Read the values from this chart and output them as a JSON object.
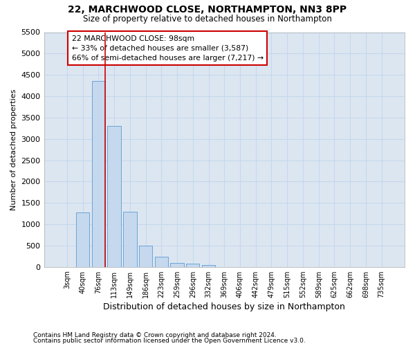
{
  "title": "22, MARCHWOOD CLOSE, NORTHAMPTON, NN3 8PP",
  "subtitle": "Size of property relative to detached houses in Northampton",
  "xlabel": "Distribution of detached houses by size in Northampton",
  "ylabel": "Number of detached properties",
  "categories": [
    "3sqm",
    "40sqm",
    "76sqm",
    "113sqm",
    "149sqm",
    "186sqm",
    "223sqm",
    "259sqm",
    "296sqm",
    "332sqm",
    "369sqm",
    "406sqm",
    "442sqm",
    "479sqm",
    "515sqm",
    "552sqm",
    "589sqm",
    "625sqm",
    "662sqm",
    "698sqm",
    "735sqm"
  ],
  "values": [
    0,
    1270,
    4350,
    3300,
    1300,
    490,
    240,
    100,
    70,
    50,
    0,
    0,
    0,
    0,
    0,
    0,
    0,
    0,
    0,
    0,
    0
  ],
  "bar_color": "#c5d8ed",
  "bar_edgecolor": "#5b9bd5",
  "grid_color": "#c5d8ed",
  "background_color": "#dce6f1",
  "ylim": [
    0,
    5500
  ],
  "yticks": [
    0,
    500,
    1000,
    1500,
    2000,
    2500,
    3000,
    3500,
    4000,
    4500,
    5000,
    5500
  ],
  "red_line_x": 2.43,
  "annotation_text_line1": "22 MARCHWOOD CLOSE: 98sqm",
  "annotation_text_line2": "← 33% of detached houses are smaller (3,587)",
  "annotation_text_line3": "66% of semi-detached houses are larger (7,217) →",
  "footnote1": "Contains HM Land Registry data © Crown copyright and database right 2024.",
  "footnote2": "Contains public sector information licensed under the Open Government Licence v3.0."
}
